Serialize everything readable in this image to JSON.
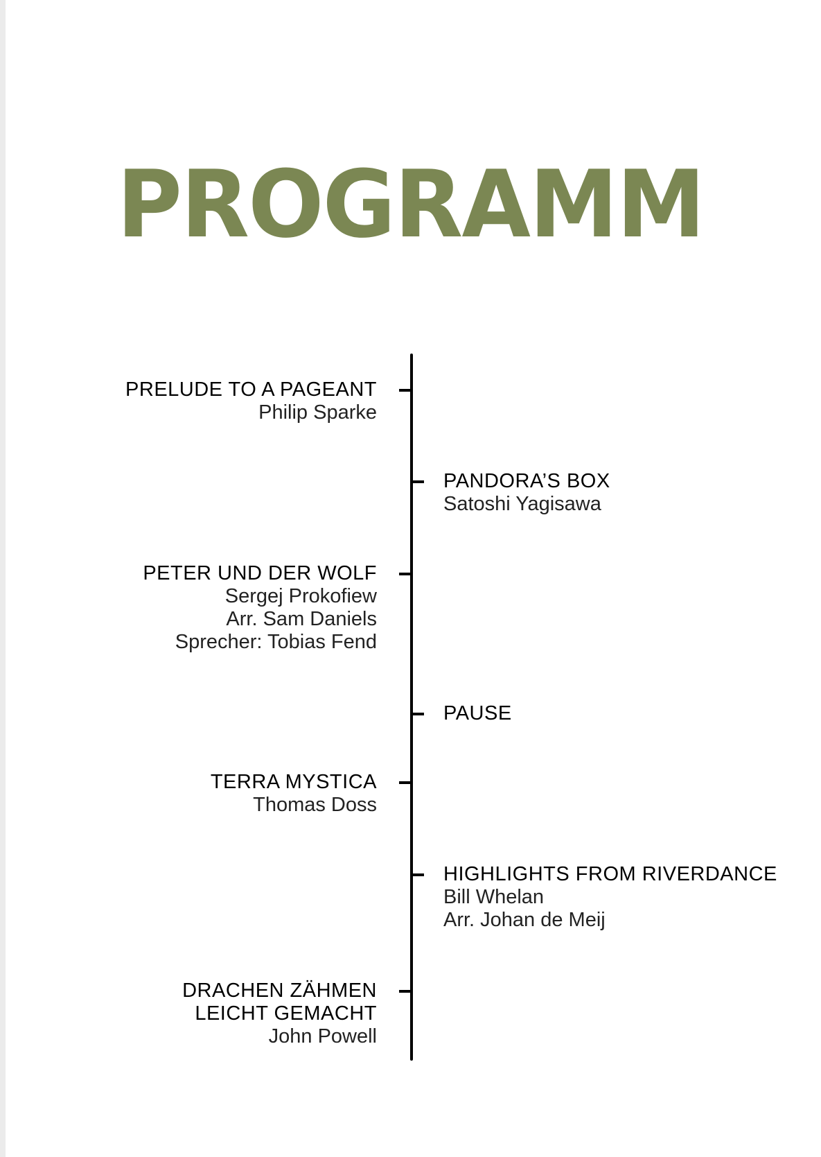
{
  "title": "PROGRAMM",
  "colors": {
    "title": "#7b8753",
    "text": "#000000"
  },
  "program": [
    {
      "side": "left",
      "title_lines": [
        "PRELUDE TO A PAGEANT"
      ],
      "credits": [
        "Philip Sparke"
      ]
    },
    {
      "side": "right",
      "title_lines": [
        "PANDORA’S BOX"
      ],
      "credits": [
        "Satoshi Yagisawa"
      ]
    },
    {
      "side": "left",
      "title_lines": [
        "PETER UND DER WOLF"
      ],
      "credits": [
        "Sergej Prokofiew",
        "Arr. Sam Daniels",
        "Sprecher: Tobias Fend"
      ]
    },
    {
      "side": "right",
      "title_lines": [
        "PAUSE"
      ],
      "credits": []
    },
    {
      "side": "left",
      "title_lines": [
        "TERRA MYSTICA"
      ],
      "credits": [
        "Thomas Doss"
      ]
    },
    {
      "side": "right",
      "title_lines": [
        "HIGHLIGHTS FROM RIVERDANCE"
      ],
      "credits": [
        "Bill Whelan",
        "Arr. Johan de Meij"
      ]
    },
    {
      "side": "left",
      "title_lines": [
        "DRACHEN ZÄHMEN",
        "LEICHT GEMACHT"
      ],
      "credits": [
        "John Powell"
      ]
    }
  ]
}
